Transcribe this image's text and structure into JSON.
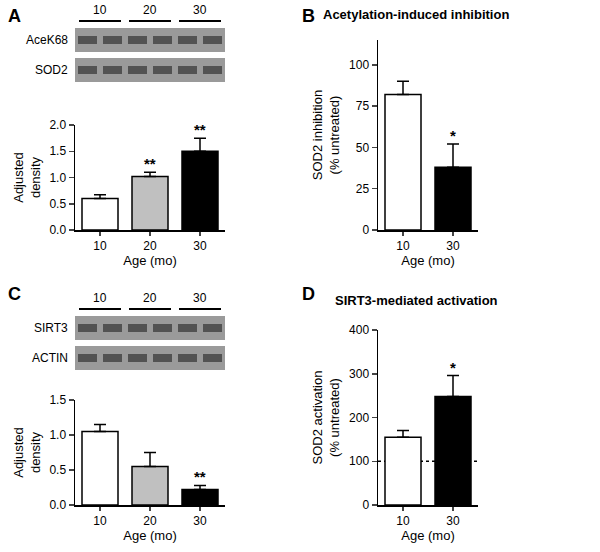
{
  "chart_data": [
    {
      "type": "bar",
      "panel": "A",
      "blot": {
        "lanes": [
          "10",
          "20",
          "30"
        ],
        "bands": [
          "AceK68",
          "SOD2"
        ]
      },
      "categories": [
        "10",
        "20",
        "30"
      ],
      "values": [
        0.6,
        1.02,
        1.5
      ],
      "errors": [
        0.07,
        0.08,
        0.25
      ],
      "colors": [
        "#ffffff",
        "#c0c0c0",
        "#000000"
      ],
      "ylabel": "Adjusted\ndensity",
      "xlabel": "Age (mo)",
      "ylim": [
        0,
        2.0
      ],
      "yticks": [
        {
          "value": 0,
          "label": "0.0"
        },
        {
          "value": 0.5,
          "label": "0.5"
        },
        {
          "value": 1.0,
          "label": "1.0"
        },
        {
          "value": 1.5,
          "label": "1.5"
        },
        {
          "value": 2.0,
          "label": "2.0"
        }
      ],
      "grid": false,
      "annotations": [
        {
          "category": "20",
          "text": "**"
        },
        {
          "category": "30",
          "text": "**"
        }
      ]
    },
    {
      "type": "bar",
      "panel": "B",
      "title": "Acetylation-induced inhibition",
      "categories": [
        "10",
        "30"
      ],
      "values": [
        82,
        38
      ],
      "errors": [
        8,
        14
      ],
      "colors": [
        "#ffffff",
        "#000000"
      ],
      "ylabel": "SOD2 inhibition\n(% untreated)",
      "xlabel": "Age (mo)",
      "ylim": [
        0,
        115
      ],
      "yticks": [
        0,
        25,
        50,
        75,
        100
      ],
      "grid": false,
      "annotations": [
        {
          "category": "30",
          "text": "*"
        }
      ]
    },
    {
      "type": "bar",
      "panel": "C",
      "blot": {
        "lanes": [
          "10",
          "20",
          "30"
        ],
        "bands": [
          "SIRT3",
          "ACTIN"
        ]
      },
      "categories": [
        "10",
        "20",
        "30"
      ],
      "values": [
        1.05,
        0.55,
        0.22
      ],
      "errors": [
        0.1,
        0.2,
        0.06
      ],
      "colors": [
        "#ffffff",
        "#c0c0c0",
        "#000000"
      ],
      "ylabel": "Adjusted\ndensity",
      "xlabel": "Age (mo)",
      "ylim": [
        0,
        1.5
      ],
      "yticks": [
        {
          "value": 0,
          "label": "0.0"
        },
        {
          "value": 0.5,
          "label": "0.5"
        },
        {
          "value": 1.0,
          "label": "1.0"
        },
        {
          "value": 1.5,
          "label": "1.5"
        }
      ],
      "grid": false,
      "annotations": [
        {
          "category": "30",
          "text": "**"
        }
      ]
    },
    {
      "type": "bar",
      "panel": "D",
      "title": "SIRT3-mediated activation",
      "categories": [
        "10",
        "30"
      ],
      "values": [
        155,
        248
      ],
      "errors": [
        15,
        48
      ],
      "colors": [
        "#ffffff",
        "#000000"
      ],
      "ylabel": "SOD2 activation\n(% untreated)",
      "xlabel": "Age (mo)",
      "ylim": [
        0,
        400
      ],
      "yticks": [
        0,
        100,
        200,
        300,
        400
      ],
      "grid": false,
      "reference": {
        "value": 100,
        "line_style": "dotted"
      },
      "annotations": [
        {
          "category": "30",
          "text": "*"
        }
      ]
    }
  ]
}
